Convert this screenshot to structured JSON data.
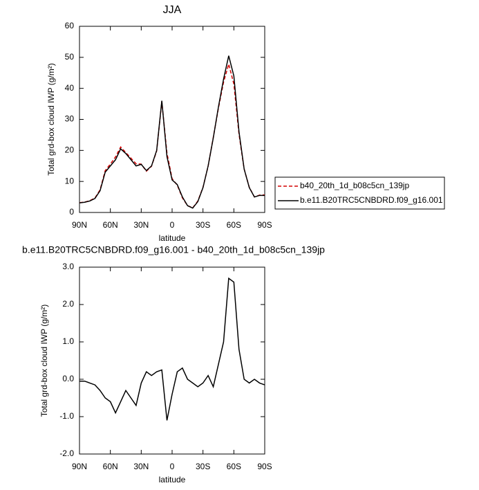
{
  "chart_data": [
    {
      "type": "line",
      "title": "JJA",
      "xlabel": "latitude",
      "ylabel": "Total grd-box cloud IWP (g/m²)",
      "x": [
        90,
        85,
        80,
        75,
        70,
        65,
        60,
        55,
        50,
        45,
        40,
        35,
        30,
        25,
        20,
        15,
        10,
        5,
        0,
        -5,
        -10,
        -15,
        -20,
        -25,
        -30,
        -35,
        -40,
        -45,
        -50,
        -55,
        -60,
        -65,
        -70,
        -75,
        -80,
        -85,
        -90
      ],
      "series": [
        {
          "name": "b40_20th_1d_b08c5cn_139jp",
          "color": "#d40000",
          "style": "dashed",
          "values": [
            3.15,
            3.35,
            3.8,
            4.65,
            7.3,
            13.5,
            15.6,
            17.9,
            21.1,
            19.3,
            17.5,
            15.7,
            15.6,
            13.3,
            14.9,
            19.8,
            35.75,
            19.1,
            10.9,
            8.8,
            4.7,
            2.2,
            1.5,
            3.7,
            8.1,
            14.9,
            24.2,
            33.6,
            42,
            47.8,
            41.4,
            25.2,
            14,
            8.1,
            5,
            5.6,
            5.65
          ]
        },
        {
          "name": "b.e11.B20TRC5CNBDRD.f09_g16.001",
          "color": "#000000",
          "style": "solid",
          "values": [
            3.1,
            3.3,
            3.7,
            4.5,
            7,
            13,
            15,
            17,
            20.5,
            19,
            17,
            15,
            15.5,
            13.5,
            15,
            20,
            36,
            18,
            10.5,
            9,
            5,
            2.2,
            1.4,
            3.5,
            8,
            15,
            24,
            34,
            43,
            50.5,
            44,
            26,
            14,
            8,
            5,
            5.5,
            5.5
          ]
        }
      ],
      "xlim": [
        90,
        -90
      ],
      "xticks": [
        {
          "value": 90,
          "label": "90N"
        },
        {
          "value": 60,
          "label": "60N"
        },
        {
          "value": 30,
          "label": "30N"
        },
        0,
        {
          "value": -30,
          "label": "30S"
        },
        {
          "value": -60,
          "label": "60S"
        },
        {
          "value": -90,
          "label": "90S"
        }
      ],
      "ylim": [
        0,
        60
      ],
      "yticks": [
        0,
        10,
        20,
        30,
        40,
        50,
        60
      ],
      "legend": "right"
    },
    {
      "type": "line",
      "title": "b.e11.B20TRC5CNBDRD.f09_g16.001 - b40_20th_1d_b08c5cn_139jp",
      "xlabel": "latitude",
      "ylabel": "Total grd-box cloud IWP (g/m²)",
      "x": [
        90,
        85,
        80,
        75,
        70,
        65,
        60,
        55,
        50,
        45,
        40,
        35,
        30,
        25,
        20,
        15,
        10,
        5,
        0,
        -5,
        -10,
        -15,
        -20,
        -25,
        -30,
        -35,
        -40,
        -45,
        -50,
        -55,
        -60,
        -65,
        -70,
        -75,
        -80,
        -85,
        -90
      ],
      "series": [
        {
          "color": "#000000",
          "style": "solid",
          "values": [
            -0.05,
            -0.05,
            -0.1,
            -0.15,
            -0.3,
            -0.5,
            -0.6,
            -0.9,
            -0.6,
            -0.3,
            -0.5,
            -0.7,
            -0.1,
            0.2,
            0.1,
            0.2,
            0.25,
            -1.1,
            -0.4,
            0.2,
            0.3,
            0.0,
            -0.1,
            -0.2,
            -0.1,
            0.1,
            -0.2,
            0.4,
            1.0,
            2.7,
            2.6,
            0.8,
            0.0,
            -0.1,
            0.0,
            -0.1,
            -0.15
          ]
        }
      ],
      "xlim": [
        90,
        -90
      ],
      "xticks": [
        {
          "value": 90,
          "label": "90N"
        },
        {
          "value": 60,
          "label": "60N"
        },
        {
          "value": 30,
          "label": "30N"
        },
        0,
        {
          "value": -30,
          "label": "30S"
        },
        {
          "value": -60,
          "label": "60S"
        },
        {
          "value": -90,
          "label": "90S"
        }
      ],
      "ylim": [
        -2,
        3
      ],
      "yticks": [
        {
          "value": -2,
          "label": "-2.0"
        },
        {
          "value": -1,
          "label": "-1.0"
        },
        {
          "value": 0,
          "label": "0.0"
        },
        {
          "value": 1,
          "label": "1.0"
        },
        {
          "value": 2,
          "label": "2.0"
        },
        {
          "value": 3,
          "label": "3.0"
        }
      ]
    }
  ]
}
